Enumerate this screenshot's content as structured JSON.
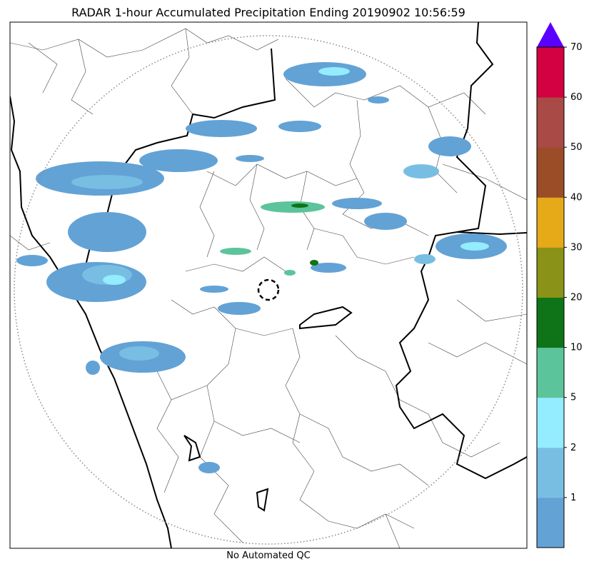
{
  "title": "RADAR 1-hour Accumulated Precipitation Ending 20190902 10:56:59",
  "caption": "No Automated QC",
  "colorbar": {
    "tick_labels": [
      "1",
      "2",
      "5",
      "10",
      "20",
      "30",
      "40",
      "50",
      "60",
      "70"
    ],
    "bins": [
      {
        "color": "#63a2d5"
      },
      {
        "color": "#78bee3"
      },
      {
        "color": "#94ecff"
      },
      {
        "color": "#5cc49b"
      },
      {
        "color": "#0e7417"
      },
      {
        "color": "#8a9317"
      },
      {
        "color": "#e6a918"
      },
      {
        "color": "#9a4d27"
      },
      {
        "color": "#a94a46"
      },
      {
        "color": "#d30141"
      }
    ],
    "extend_color": "#5a00ff"
  },
  "colors": {
    "light_blue": "#63a2d5",
    "mid_blue": "#78bee3",
    "cyan": "#94ecff",
    "light_green": "#5cc49b",
    "dark_green": "#0e7417",
    "range_ring": "#888888"
  }
}
